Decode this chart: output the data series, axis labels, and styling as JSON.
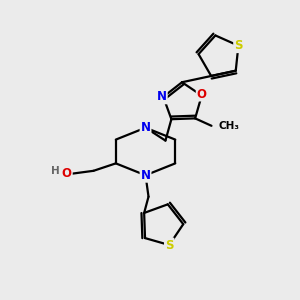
{
  "bg_color": "#ebebeb",
  "atom_colors": {
    "C": "#000000",
    "N": "#0000ee",
    "O": "#dd0000",
    "S": "#cccc00",
    "H": "#666666"
  },
  "bond_color": "#000000",
  "bond_width": 1.6,
  "font_size_atom": 8.5,
  "font_size_small": 7.5
}
